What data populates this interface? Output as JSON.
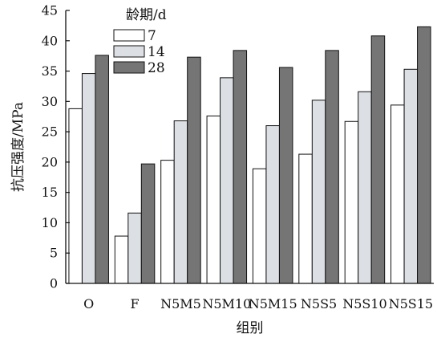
{
  "chart_data": {
    "type": "bar",
    "title": "",
    "xlabel": "组别",
    "ylabel": "抗压强度/MPa",
    "ylim": [
      0,
      45
    ],
    "yticks": [
      0,
      5,
      10,
      15,
      20,
      25,
      30,
      35,
      40,
      45
    ],
    "grid": false,
    "legend_title": "龄期/d",
    "legend_position": "top-left",
    "categories": [
      "O",
      "F",
      "N5M5",
      "N5M10",
      "N5M15",
      "N5S5",
      "N5S10",
      "N5S15"
    ],
    "series": [
      {
        "name": "7",
        "color": "#ffffff",
        "values": [
          28.8,
          7.8,
          20.3,
          27.6,
          18.9,
          21.3,
          26.7,
          29.4
        ]
      },
      {
        "name": "14",
        "color": "#dcdfe3",
        "values": [
          34.6,
          11.6,
          26.8,
          33.9,
          26.0,
          30.2,
          31.6,
          35.3
        ]
      },
      {
        "name": "28",
        "color": "#757575",
        "values": [
          37.6,
          19.7,
          37.3,
          38.4,
          35.6,
          38.4,
          40.8,
          42.3
        ]
      }
    ]
  }
}
